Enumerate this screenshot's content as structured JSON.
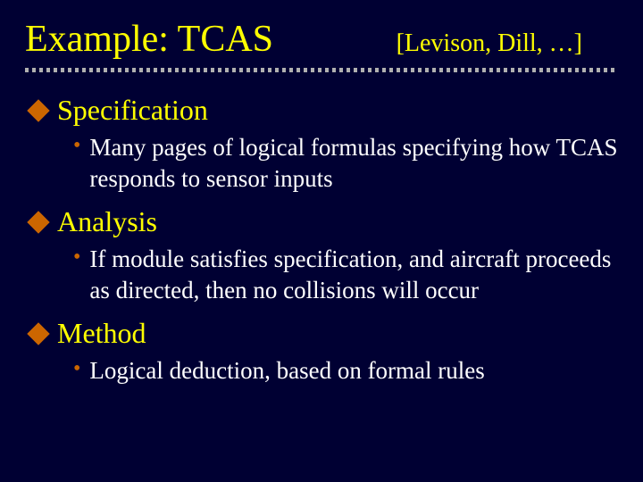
{
  "colors": {
    "background": "#000033",
    "heading_text": "#ffff00",
    "body_text": "#ffffff",
    "accent": "#cc6600",
    "divider": "#b0b0b0"
  },
  "typography": {
    "title_fontsize": 42,
    "citation_fontsize": 28,
    "section_title_fontsize": 32,
    "bullet_fontsize": 27,
    "font_family": "Georgia, Times New Roman, serif"
  },
  "header": {
    "title": "Example: TCAS",
    "citation": "[Levison, Dill, …]"
  },
  "sections": [
    {
      "title": "Specification",
      "bullets": [
        "Many pages of logical formulas specifying how TCAS responds to sensor inputs"
      ]
    },
    {
      "title": "Analysis",
      "bullets": [
        "If module satisfies specification, and aircraft proceeds as directed, then no collisions will occur"
      ]
    },
    {
      "title": "Method",
      "bullets": [
        "Logical deduction, based on formal rules"
      ]
    }
  ]
}
